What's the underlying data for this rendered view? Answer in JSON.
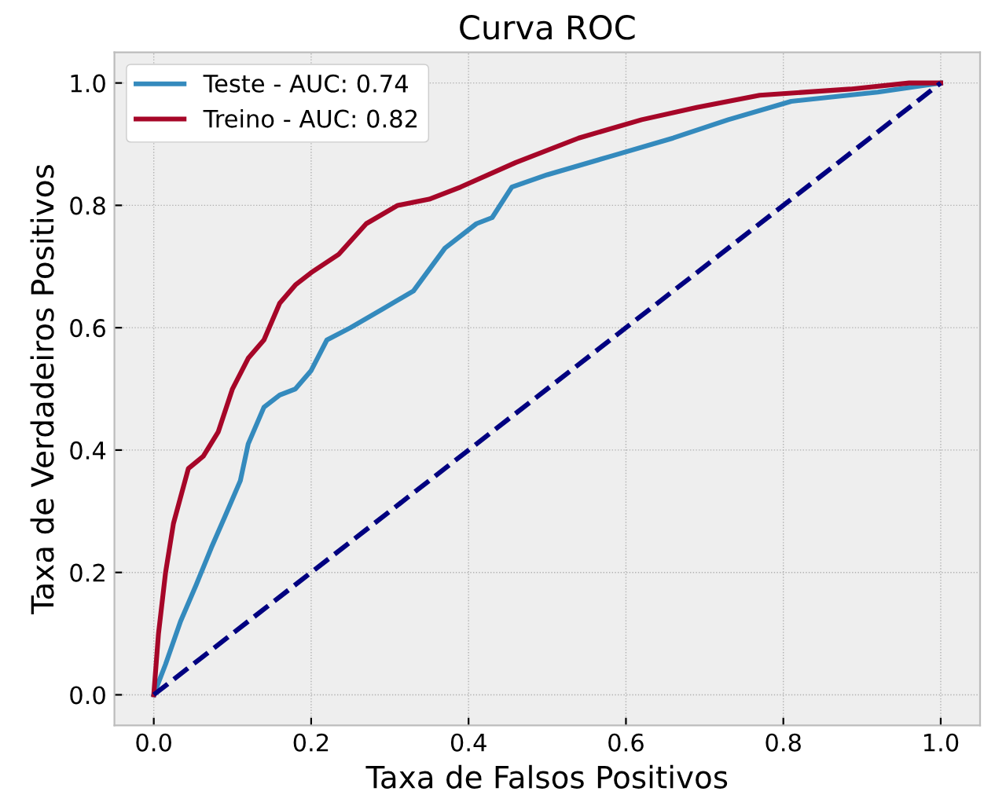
{
  "chart_data": {
    "type": "line",
    "title": "Curva ROC",
    "xlabel": "Taxa de Falsos Positivos",
    "ylabel": "Taxa de Verdadeiros Positivos",
    "xlim": [
      -0.05,
      1.05
    ],
    "ylim": [
      -0.05,
      1.05
    ],
    "xticks": [
      {
        "value": 0,
        "label": "0.0"
      },
      0.2,
      0.4,
      0.6,
      0.8,
      {
        "value": 1,
        "label": "1.0"
      }
    ],
    "yticks": [
      {
        "value": 0,
        "label": "0.0"
      },
      0.2,
      0.4,
      0.6,
      0.8,
      {
        "value": 1,
        "label": "1.0"
      }
    ],
    "grid": true,
    "legend": "top left",
    "marker": "none",
    "series": [
      {
        "name": "Teste - AUC: 0.74",
        "color": "#348abd",
        "line_style": "solid",
        "x": [
          0,
          0.015,
          0.034,
          0.054,
          0.073,
          0.09,
          0.11,
          0.12,
          0.14,
          0.16,
          0.18,
          0.2,
          0.22,
          0.25,
          0.29,
          0.33,
          0.37,
          0.41,
          0.43,
          0.455,
          0.5,
          0.58,
          0.66,
          0.73,
          0.81,
          0.92,
          1
        ],
        "values": [
          0,
          0.05,
          0.12,
          0.18,
          0.24,
          0.29,
          0.35,
          0.41,
          0.47,
          0.49,
          0.5,
          0.53,
          0.58,
          0.6,
          0.63,
          0.66,
          0.73,
          0.77,
          0.78,
          0.83,
          0.85,
          0.88,
          0.91,
          0.94,
          0.97,
          0.985,
          1
        ]
      },
      {
        "name": "Treino - AUC: 0.82",
        "color": "#a60628",
        "line_style": "solid",
        "x": [
          0,
          0.006,
          0.015,
          0.025,
          0.044,
          0.063,
          0.082,
          0.1,
          0.12,
          0.14,
          0.16,
          0.18,
          0.2,
          0.235,
          0.27,
          0.31,
          0.35,
          0.39,
          0.46,
          0.54,
          0.62,
          0.69,
          0.77,
          0.885,
          0.96,
          1
        ],
        "values": [
          0,
          0.1,
          0.2,
          0.28,
          0.37,
          0.39,
          0.43,
          0.5,
          0.55,
          0.58,
          0.64,
          0.67,
          0.69,
          0.72,
          0.77,
          0.8,
          0.81,
          0.83,
          0.87,
          0.91,
          0.94,
          0.96,
          0.98,
          0.99,
          1,
          1
        ]
      },
      {
        "color": "#000080",
        "line_style": "dashed",
        "x": [
          0,
          1
        ],
        "values": [
          0,
          1
        ]
      }
    ]
  }
}
